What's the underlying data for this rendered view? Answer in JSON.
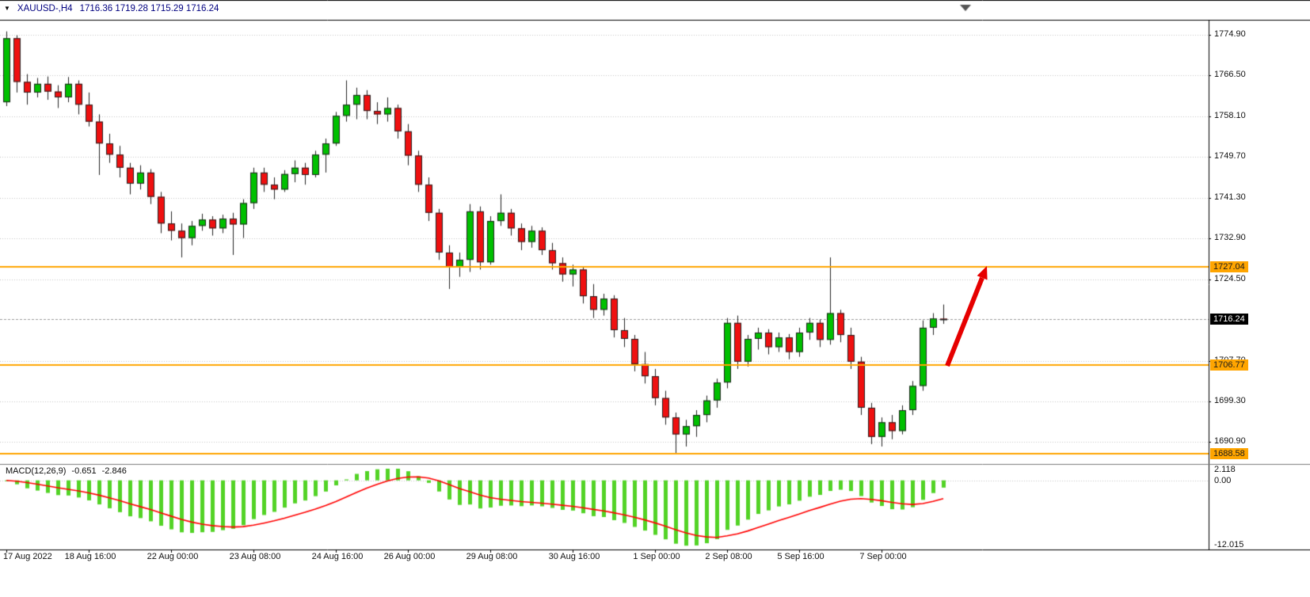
{
  "window": {
    "symbol_period": "XAUUSD-,H4",
    "ohlc_text": "1716.36 1719.28 1715.29 1716.24"
  },
  "chart_data": {
    "type": "candlestick",
    "title": "XAUUSD-,H4",
    "symbol": "XAUUSD-",
    "timeframe": "H4",
    "info_ohlc": {
      "open": "1716.36",
      "high": "1719.28",
      "low": "1715.29",
      "close": "1716.24"
    },
    "price_ylim": [
      1686.4,
      1778.0
    ],
    "price_ticks": [
      "1774.90",
      "1766.50",
      "1758.10",
      "1749.70",
      "1741.30",
      "1732.90",
      "1724.50",
      "1707.70",
      "1699.30",
      "1690.90"
    ],
    "current_price": 1716.24,
    "current_price_label": "1716.24",
    "hlines": [
      {
        "price": 1727.04,
        "label": "1727.04"
      },
      {
        "price": 1706.77,
        "label": "1706.77"
      },
      {
        "price": 1688.58,
        "label": "1688.58"
      }
    ],
    "time_ticks": [
      {
        "i": 0,
        "label": "17 Aug 2022"
      },
      {
        "i": 8,
        "label": "18 Aug 16:00"
      },
      {
        "i": 16,
        "label": "22 Aug 00:00"
      },
      {
        "i": 24,
        "label": "23 Aug 08:00"
      },
      {
        "i": 32,
        "label": "24 Aug 16:00"
      },
      {
        "i": 39,
        "label": "26 Aug 00:00"
      },
      {
        "i": 47,
        "label": "29 Aug 08:00"
      },
      {
        "i": 55,
        "label": "30 Aug 16:00"
      },
      {
        "i": 63,
        "label": "1 Sep 00:00"
      },
      {
        "i": 70,
        "label": "2 Sep 08:00"
      },
      {
        "i": 77,
        "label": "5 Sep 16:00"
      },
      {
        "i": 85,
        "label": "7 Sep 00:00"
      }
    ],
    "candles": [
      [
        1761.0,
        1775.6,
        1760.2,
        1774.2
      ],
      [
        1774.2,
        1774.8,
        1763.0,
        1765.2
      ],
      [
        1765.2,
        1766.8,
        1760.5,
        1763.0
      ],
      [
        1763.0,
        1766.0,
        1762.0,
        1764.8
      ],
      [
        1764.8,
        1766.3,
        1761.5,
        1763.2
      ],
      [
        1763.2,
        1764.5,
        1759.8,
        1762.0
      ],
      [
        1762.0,
        1766.2,
        1761.0,
        1764.8
      ],
      [
        1764.8,
        1765.5,
        1758.5,
        1760.5
      ],
      [
        1760.5,
        1763.0,
        1756.0,
        1757.0
      ],
      [
        1757.0,
        1758.5,
        1746.0,
        1752.5
      ],
      [
        1752.5,
        1754.5,
        1748.5,
        1750.2
      ],
      [
        1750.2,
        1752.0,
        1745.5,
        1747.5
      ],
      [
        1747.5,
        1748.5,
        1742.0,
        1744.2
      ],
      [
        1744.2,
        1748.0,
        1743.0,
        1746.5
      ],
      [
        1746.5,
        1747.2,
        1740.0,
        1741.5
      ],
      [
        1741.5,
        1742.5,
        1734.0,
        1736.0
      ],
      [
        1736.0,
        1738.5,
        1732.5,
        1734.5
      ],
      [
        1734.5,
        1736.0,
        1729.0,
        1733.0
      ],
      [
        1733.0,
        1736.5,
        1731.5,
        1735.5
      ],
      [
        1735.5,
        1738.0,
        1734.5,
        1736.8
      ],
      [
        1736.8,
        1737.5,
        1733.5,
        1735.0
      ],
      [
        1735.0,
        1737.8,
        1734.0,
        1737.0
      ],
      [
        1737.0,
        1738.2,
        1729.5,
        1735.8
      ],
      [
        1735.8,
        1741.0,
        1733.0,
        1740.2
      ],
      [
        1740.2,
        1747.5,
        1739.0,
        1746.5
      ],
      [
        1746.5,
        1747.5,
        1742.5,
        1744.0
      ],
      [
        1744.0,
        1745.5,
        1741.0,
        1743.0
      ],
      [
        1743.0,
        1747.0,
        1742.5,
        1746.2
      ],
      [
        1746.2,
        1749.0,
        1744.5,
        1747.5
      ],
      [
        1747.5,
        1748.5,
        1744.0,
        1746.0
      ],
      [
        1746.0,
        1751.0,
        1745.5,
        1750.2
      ],
      [
        1750.2,
        1753.5,
        1746.5,
        1752.5
      ],
      [
        1752.5,
        1759.0,
        1752.0,
        1758.2
      ],
      [
        1758.2,
        1765.5,
        1757.0,
        1760.5
      ],
      [
        1760.5,
        1764.0,
        1757.5,
        1762.5
      ],
      [
        1762.5,
        1763.5,
        1757.5,
        1759.2
      ],
      [
        1759.2,
        1761.0,
        1756.5,
        1758.5
      ],
      [
        1758.5,
        1762.0,
        1757.0,
        1759.8
      ],
      [
        1759.8,
        1760.5,
        1753.5,
        1755.0
      ],
      [
        1755.0,
        1756.5,
        1748.0,
        1750.0
      ],
      [
        1750.0,
        1751.0,
        1742.5,
        1744.0
      ],
      [
        1744.0,
        1745.5,
        1736.5,
        1738.2
      ],
      [
        1738.2,
        1739.0,
        1728.5,
        1730.0
      ],
      [
        1730.0,
        1731.5,
        1722.5,
        1727.0
      ],
      [
        1727.0,
        1730.0,
        1725.0,
        1728.5
      ],
      [
        1728.5,
        1740.0,
        1726.0,
        1738.5
      ],
      [
        1738.5,
        1739.5,
        1726.5,
        1728.0
      ],
      [
        1728.0,
        1737.5,
        1727.5,
        1736.5
      ],
      [
        1736.5,
        1742.0,
        1735.5,
        1738.2
      ],
      [
        1738.2,
        1739.0,
        1733.5,
        1735.0
      ],
      [
        1735.0,
        1736.0,
        1730.5,
        1732.2
      ],
      [
        1732.2,
        1735.5,
        1731.0,
        1734.5
      ],
      [
        1734.5,
        1735.2,
        1729.5,
        1730.5
      ],
      [
        1730.5,
        1732.0,
        1726.5,
        1727.8
      ],
      [
        1727.8,
        1729.0,
        1724.0,
        1725.5
      ],
      [
        1725.5,
        1727.5,
        1723.0,
        1726.5
      ],
      [
        1726.5,
        1727.2,
        1719.5,
        1721.0
      ],
      [
        1721.0,
        1723.5,
        1716.5,
        1718.2
      ],
      [
        1718.2,
        1721.5,
        1717.0,
        1720.5
      ],
      [
        1720.5,
        1721.2,
        1712.5,
        1714.0
      ],
      [
        1714.0,
        1716.5,
        1710.5,
        1712.2
      ],
      [
        1712.2,
        1713.0,
        1705.5,
        1707.0
      ],
      [
        1707.0,
        1709.5,
        1703.0,
        1704.5
      ],
      [
        1704.5,
        1706.0,
        1698.5,
        1700.0
      ],
      [
        1700.0,
        1701.5,
        1694.5,
        1696.0
      ],
      [
        1696.0,
        1697.0,
        1688.5,
        1692.5
      ],
      [
        1692.5,
        1695.5,
        1690.0,
        1694.2
      ],
      [
        1694.2,
        1697.5,
        1692.0,
        1696.5
      ],
      [
        1696.5,
        1700.5,
        1695.0,
        1699.5
      ],
      [
        1699.5,
        1704.0,
        1698.0,
        1703.2
      ],
      [
        1703.2,
        1716.5,
        1702.0,
        1715.5
      ],
      [
        1715.5,
        1717.0,
        1706.0,
        1707.5
      ],
      [
        1707.5,
        1713.0,
        1706.5,
        1712.2
      ],
      [
        1712.2,
        1714.5,
        1710.0,
        1713.5
      ],
      [
        1713.5,
        1714.2,
        1709.0,
        1710.5
      ],
      [
        1710.5,
        1713.5,
        1709.5,
        1712.5
      ],
      [
        1712.5,
        1713.2,
        1708.0,
        1709.5
      ],
      [
        1709.5,
        1714.5,
        1708.5,
        1713.5
      ],
      [
        1713.5,
        1716.5,
        1712.0,
        1715.5
      ],
      [
        1715.5,
        1716.2,
        1710.5,
        1712.0
      ],
      [
        1712.0,
        1729.0,
        1711.0,
        1717.5
      ],
      [
        1717.5,
        1718.2,
        1711.5,
        1713.0
      ],
      [
        1713.0,
        1714.5,
        1706.0,
        1707.5
      ],
      [
        1707.5,
        1708.5,
        1696.5,
        1698.0
      ],
      [
        1698.0,
        1699.0,
        1690.5,
        1692.0
      ],
      [
        1692.0,
        1696.0,
        1690.0,
        1695.0
      ],
      [
        1695.0,
        1696.5,
        1691.5,
        1693.2
      ],
      [
        1693.2,
        1698.5,
        1692.5,
        1697.5
      ],
      [
        1697.5,
        1703.5,
        1696.5,
        1702.5
      ],
      [
        1702.5,
        1716.0,
        1701.5,
        1714.5
      ],
      [
        1714.5,
        1717.5,
        1713.0,
        1716.4
      ],
      [
        1716.36,
        1719.28,
        1715.29,
        1716.24
      ]
    ],
    "macd": {
      "name": "MACD(12,26,9)",
      "value_main": "-0.651",
      "value_signal": "-2.846",
      "params": [
        12,
        26,
        9
      ],
      "ylim": [
        -12.015,
        2.118
      ],
      "axis_labels": {
        "top": "2.118",
        "zero": "0.00",
        "bottom": "-12.015"
      }
    },
    "colors": {
      "bull": "#00c000",
      "bear": "#ef1010",
      "body_border": "#222222",
      "wick": "#222222",
      "grid": "#c6c6c6",
      "hline": "#ffa500",
      "macd_bar": "#53d326",
      "signal": "#ff0000",
      "current_badge_bg": "#000000",
      "current_badge_text": "#ffffff",
      "info_text": "#000080",
      "arrow": "#e60000"
    },
    "annotations": [
      {
        "type": "arrow",
        "direction": "up-right",
        "color": "#e60000",
        "from_price_level": 1706.77,
        "to_price_level": 1727.04
      }
    ],
    "legend": [],
    "grid": "horizontal-dotted"
  }
}
